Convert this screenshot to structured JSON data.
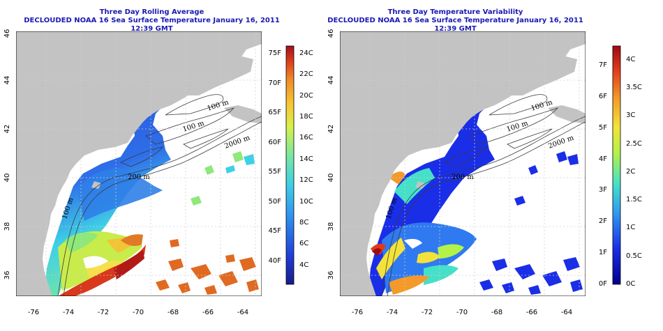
{
  "left_panel": {
    "title": "Three Day Rolling Average",
    "subtitle": "DECLOUDED NOAA 16 Sea Surface Temperature January 16, 2011 12:39 GMT",
    "colorbar_f": [
      "75F",
      "70F",
      "65F",
      "60F",
      "55F",
      "50F",
      "45F",
      "40F"
    ],
    "colorbar_c": [
      "24C",
      "22C",
      "20C",
      "18C",
      "16C",
      "14C",
      "12C",
      "10C",
      "8C",
      "6C",
      "4C"
    ]
  },
  "right_panel": {
    "title": "Three Day Temperature Variability",
    "subtitle": "DECLOUDED NOAA 16 Sea Surface Temperature January 16, 2011 12:39 GMT",
    "colorbar_f": [
      "7F",
      "6F",
      "5F",
      "4F",
      "3F",
      "2F",
      "1F",
      "0F"
    ],
    "colorbar_c": [
      "4C",
      "3.5C",
      "3C",
      "2.5C",
      "2C",
      "1.5C",
      "1C",
      "0.5C",
      "0C"
    ]
  },
  "axes": {
    "lon_ticks": [
      "-76",
      "-74",
      "-72",
      "-70",
      "-68",
      "-66",
      "-64"
    ],
    "lat_ticks": [
      "36",
      "38",
      "40",
      "42",
      "44",
      "46"
    ]
  },
  "isobath_labels": [
    "100 m",
    "100 m",
    "2000 m",
    "200 m",
    "100 m"
  ],
  "colors": {
    "land": "#c3c3c3",
    "title": "#1a1ab4",
    "sst_scale": [
      "#1a1a8c",
      "#1f3fd6",
      "#2f8ff0",
      "#3fd0e6",
      "#7fe89a",
      "#d8f04a",
      "#f7c533",
      "#f08a28",
      "#d83a1e",
      "#a0121a"
    ],
    "var_scale": [
      "#00008c",
      "#1a2ee8",
      "#2f9af0",
      "#45e0c8",
      "#b4f24a",
      "#f4e23a",
      "#f49a2a",
      "#e03a1a",
      "#9c0a14"
    ]
  }
}
